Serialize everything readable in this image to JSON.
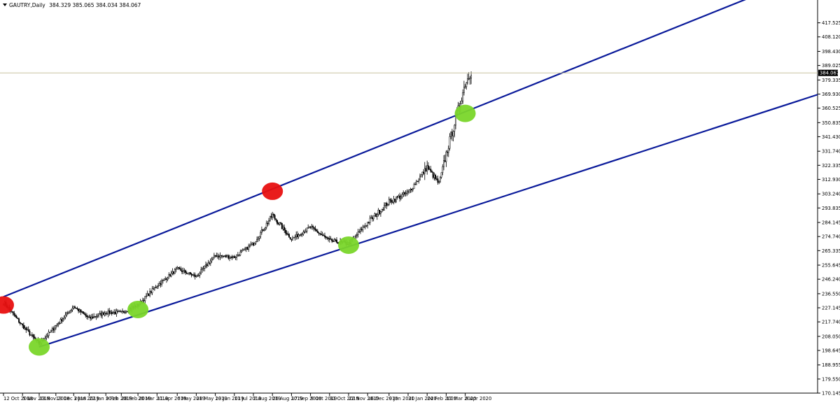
{
  "header": {
    "symbol": "GAUTRY",
    "timeframe": "Daily",
    "ohlc": "384.329 385.065 384.034 384.067",
    "arrow_icon": "dropdown-triangle-icon"
  },
  "chart_data": {
    "type": "candlestick",
    "ylim": [
      170.145,
      426.22
    ],
    "y_ticks": [
      "417.525",
      "408.120",
      "398.430",
      "389.025",
      "379.335",
      "369.930",
      "360.525",
      "350.835",
      "341.430",
      "331.740",
      "322.335",
      "312.930",
      "303.240",
      "293.835",
      "284.145",
      "274.740",
      "265.335",
      "255.645",
      "246.240",
      "236.550",
      "227.145",
      "217.740",
      "208.050",
      "198.645",
      "188.955",
      "179.550",
      "170.145"
    ],
    "x_labels": [
      "12 Oct 2018",
      "5 Nov 2018",
      "23 Nov 2018",
      "13 Dec 2018",
      "3 Jan 2019",
      "22 Jan 2019",
      "9 Feb 2019",
      "28 Feb 2019",
      "20 Mar 2019",
      "11 Apr 2019",
      "6 May 2019",
      "28 May 2019",
      "19 Jun 2019",
      "11 Jul 2019",
      "2 Aug 2019",
      "26 Aug 2019",
      "17 Sep 2019",
      "9 Oct 2019",
      "31 Oct 2019",
      "22 Nov 2019",
      "16 Dec 2019",
      "9 Jan 2020",
      "31 Jan 2020",
      "24 Feb 2020",
      "17 Mar 2020",
      "8 Apr 2020"
    ],
    "current_price": "384.067",
    "colors": {
      "candle": "#000000",
      "channel": "#0a1a9a",
      "price_line": "#c8c4a0",
      "axis": "#000000",
      "marker_red": "#e81010",
      "marker_green": "#7ad62a",
      "price_tag_bg": "#000000",
      "price_tag_text": "#ffffff"
    },
    "anchors": [
      [
        "12 Oct 2018",
        231
      ],
      [
        "5 Nov 2018",
        215
      ],
      [
        "23 Nov 2018",
        203
      ],
      [
        "13 Dec 2018",
        215
      ],
      [
        "3 Jan 2019",
        228
      ],
      [
        "22 Jan 2019",
        220
      ],
      [
        "9 Feb 2019",
        224
      ],
      [
        "28 Feb 2019",
        224
      ],
      [
        "20 Mar 2019",
        229
      ],
      [
        "11 Apr 2019",
        242
      ],
      [
        "6 May 2019",
        253
      ],
      [
        "28 May 2019",
        248
      ],
      [
        "19 Jun 2019",
        262
      ],
      [
        "11 Jul 2019",
        261
      ],
      [
        "2 Aug 2019",
        270
      ],
      [
        "26 Aug 2019",
        289
      ],
      [
        "17 Sep 2019",
        273
      ],
      [
        "9 Oct 2019",
        281
      ],
      [
        "31 Oct 2019",
        272
      ],
      [
        "22 Nov 2019",
        270
      ],
      [
        "16 Dec 2019",
        284
      ],
      [
        "9 Jan 2020",
        298
      ],
      [
        "31 Jan 2020",
        304
      ],
      [
        "24 Feb 2020",
        321
      ],
      [
        "7 Mar 2020",
        310
      ],
      [
        "17 Mar 2020",
        330
      ],
      [
        "8 Apr 2020",
        377
      ],
      [
        "15 Apr 2020",
        385
      ]
    ],
    "upper_channel": [
      [
        "12 Oct 2018",
        234.5
      ],
      [
        "26 Aug 2019",
        306.5
      ]
    ],
    "lower_channel": [
      [
        "23 Nov 2018",
        201
      ],
      [
        "22 Nov 2019",
        268
      ]
    ],
    "markers": [
      {
        "date": "12 Oct 2018",
        "value": 229,
        "color": "red"
      },
      {
        "date": "23 Nov 2018",
        "value": 201,
        "color": "green"
      },
      {
        "date": "20 Mar 2019",
        "value": 226,
        "color": "green"
      },
      {
        "date": "26 Aug 2019",
        "value": 305,
        "color": "red"
      },
      {
        "date": "22 Nov 2019",
        "value": 269,
        "color": "green"
      },
      {
        "date": "8 Apr 2020",
        "value": 357,
        "color": "green"
      }
    ]
  }
}
